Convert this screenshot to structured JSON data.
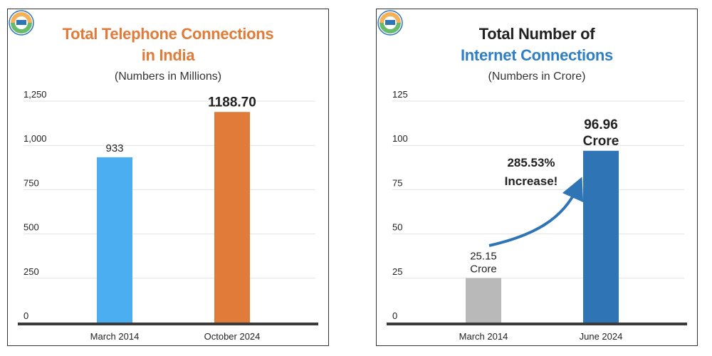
{
  "charts": [
    {
      "title_lines": [
        "Total Telephone Connections",
        "in India"
      ],
      "subtitle": "(Numbers in Millions)",
      "title_colors": [
        "#e07b39",
        "#e07b39"
      ],
      "bar_colors": [
        "#4aaef0",
        "#e07b39"
      ],
      "highlight_label_index": 1,
      "annotation": null
    },
    {
      "title_lines": [
        "Total Number of",
        "Internet Connections"
      ],
      "subtitle": "(Numbers in Crore)",
      "title_colors": [
        "#222222",
        "#2f7fc4"
      ],
      "bar_colors": [
        "#b9b9b9",
        "#2f74b5"
      ],
      "highlight_label_index": 1,
      "annotation": {
        "text": [
          "285.53%",
          "Increase!"
        ],
        "arrow_color": "#2f74b5"
      }
    }
  ],
  "chart_data": [
    {
      "type": "bar",
      "title": "Total Telephone Connections in India",
      "subtitle": "(Numbers in Millions)",
      "categories": [
        "March 2014",
        "October 2024"
      ],
      "values": [
        933,
        1188.7
      ],
      "data_labels": [
        "933",
        "1188.70"
      ],
      "yticks": [
        0,
        250,
        500,
        750,
        1000,
        1250
      ],
      "ytick_labels": [
        "0",
        "250",
        "500",
        "750",
        "1,000",
        "1,250"
      ],
      "ylim": [
        0,
        1250
      ],
      "grid": true
    },
    {
      "type": "bar",
      "title": "Total Number of Internet Connections",
      "subtitle": "(Numbers in Crore)",
      "categories": [
        "March 2014",
        "June 2024"
      ],
      "values": [
        25.15,
        96.96
      ],
      "data_labels": [
        [
          "25.15",
          "Crore"
        ],
        [
          "96.96",
          "Crore"
        ]
      ],
      "yticks": [
        0,
        25,
        50,
        75,
        100,
        125
      ],
      "ytick_labels": [
        "0",
        "25",
        "50",
        "75",
        "100",
        "125"
      ],
      "ylim": [
        0,
        125
      ],
      "grid": true
    }
  ]
}
